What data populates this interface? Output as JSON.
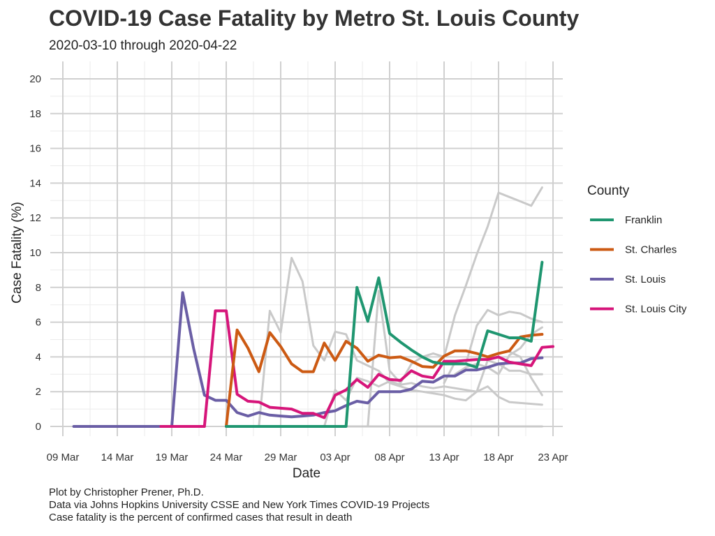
{
  "chart_data": {
    "type": "line",
    "title": "COVID-19 Case Fatality by Metro St. Louis County",
    "subtitle": "2020-03-10 through 2020-04-22",
    "xlabel": "Date",
    "ylabel": "Case Fatality (%)",
    "xlim": [
      "2020-03-09",
      "2020-04-23"
    ],
    "ylim": [
      0,
      20
    ],
    "x_ticks": [
      {
        "date": "2020-03-09",
        "label": "09 Mar"
      },
      {
        "date": "2020-03-14",
        "label": "14 Mar"
      },
      {
        "date": "2020-03-19",
        "label": "19 Mar"
      },
      {
        "date": "2020-03-24",
        "label": "24 Mar"
      },
      {
        "date": "2020-03-29",
        "label": "29 Mar"
      },
      {
        "date": "2020-04-03",
        "label": "03 Apr"
      },
      {
        "date": "2020-04-08",
        "label": "08 Apr"
      },
      {
        "date": "2020-04-13",
        "label": "13 Apr"
      },
      {
        "date": "2020-04-18",
        "label": "18 Apr"
      },
      {
        "date": "2020-04-23",
        "label": "23 Apr"
      }
    ],
    "y_ticks": [
      0,
      2,
      4,
      6,
      8,
      10,
      12,
      14,
      16,
      18,
      20
    ],
    "grid": true,
    "legend": {
      "title": "County",
      "position": "right"
    },
    "series": [
      {
        "name": "St. Louis",
        "color": "#6a5ea5",
        "start_date": "2020-03-10",
        "values": [
          0,
          0,
          0,
          0,
          0,
          0,
          0,
          0,
          0,
          0,
          7.7,
          4.5,
          1.8,
          1.5,
          1.5,
          0.8,
          0.6,
          0.8,
          0.65,
          0.6,
          0.55,
          0.6,
          0.65,
          0.8,
          0.9,
          1.2,
          1.45,
          1.35,
          2.0,
          2.0,
          2.0,
          2.15,
          2.6,
          2.55,
          2.9,
          2.9,
          3.25,
          3.25,
          3.4,
          3.6,
          3.65,
          3.65,
          3.9,
          3.95
        ]
      },
      {
        "name": "St. Louis City",
        "color": "#d6157a",
        "start_date": "2020-03-18",
        "values": [
          0,
          0,
          0,
          0,
          0,
          6.65,
          6.65,
          1.85,
          1.45,
          1.4,
          1.1,
          1.05,
          1.0,
          0.75,
          0.75,
          0.5,
          1.8,
          2.1,
          2.7,
          2.25,
          3.0,
          2.7,
          2.65,
          3.2,
          2.9,
          2.8,
          3.75,
          3.75,
          3.8,
          3.85,
          3.85,
          4.0,
          3.7,
          3.6,
          3.5,
          4.55,
          4.6
        ]
      },
      {
        "name": "St. Charles",
        "color": "#cc5a13",
        "start_date": "2020-03-24",
        "values": [
          0,
          5.55,
          4.5,
          3.15,
          5.4,
          4.6,
          3.6,
          3.15,
          3.15,
          4.8,
          3.8,
          4.9,
          4.5,
          3.75,
          4.1,
          3.95,
          4.0,
          3.75,
          3.45,
          3.4,
          4.05,
          4.35,
          4.35,
          4.2,
          4.0,
          4.2,
          4.35,
          5.15,
          5.25,
          5.3
        ]
      },
      {
        "name": "Franklin",
        "color": "#1f9670",
        "start_date": "2020-03-24",
        "values": [
          0,
          0,
          0,
          0,
          0,
          0,
          0,
          0,
          0,
          0,
          0,
          0,
          8.0,
          6.05,
          8.55,
          5.35,
          4.85,
          4.4,
          4.0,
          3.7,
          3.6,
          3.6,
          3.6,
          3.4,
          5.5,
          5.3,
          5.1,
          5.1,
          4.9,
          9.45
        ]
      }
    ],
    "background_series": [
      {
        "color": "#c9c9c9",
        "points": [
          [
            "2020-03-24",
            0
          ],
          [
            "2020-04-22",
            0
          ]
        ]
      },
      {
        "color": "#c9c9c9",
        "points": [
          [
            "2020-03-27",
            0
          ],
          [
            "2020-03-28",
            6.65
          ],
          [
            "2020-03-29",
            5.4
          ],
          [
            "2020-03-30",
            9.7
          ],
          [
            "2020-03-31",
            8.35
          ],
          [
            "2020-04-01",
            4.65
          ],
          [
            "2020-04-02",
            3.8
          ],
          [
            "2020-04-03",
            5.45
          ],
          [
            "2020-04-04",
            5.3
          ],
          [
            "2020-04-05",
            3.8
          ],
          [
            "2020-04-06",
            3.5
          ],
          [
            "2020-04-07",
            3.2
          ],
          [
            "2020-04-08",
            2.5
          ],
          [
            "2020-04-09",
            2.3
          ],
          [
            "2020-04-10",
            2.1
          ],
          [
            "2020-04-11",
            2.0
          ],
          [
            "2020-04-12",
            1.9
          ],
          [
            "2020-04-13",
            1.8
          ],
          [
            "2020-04-14",
            1.6
          ],
          [
            "2020-04-15",
            1.5
          ],
          [
            "2020-04-16",
            2.0
          ],
          [
            "2020-04-17",
            2.3
          ],
          [
            "2020-04-18",
            1.7
          ],
          [
            "2020-04-19",
            1.4
          ],
          [
            "2020-04-20",
            1.35
          ],
          [
            "2020-04-21",
            1.3
          ],
          [
            "2020-04-22",
            1.25
          ]
        ]
      },
      {
        "color": "#c9c9c9",
        "points": [
          [
            "2020-04-02",
            0
          ],
          [
            "2020-04-03",
            2.1
          ],
          [
            "2020-04-04",
            1.5
          ],
          [
            "2020-04-05",
            2.8
          ],
          [
            "2020-04-06",
            2.6
          ],
          [
            "2020-04-07",
            2.3
          ],
          [
            "2020-04-08",
            2.6
          ],
          [
            "2020-04-09",
            2.4
          ],
          [
            "2020-04-10",
            2.5
          ],
          [
            "2020-04-11",
            2.3
          ],
          [
            "2020-04-12",
            2.2
          ],
          [
            "2020-04-13",
            2.3
          ],
          [
            "2020-04-14",
            2.2
          ],
          [
            "2020-04-15",
            2.1
          ],
          [
            "2020-04-16",
            2.0
          ],
          [
            "2020-04-17",
            3.8
          ],
          [
            "2020-04-18",
            3.6
          ],
          [
            "2020-04-19",
            3.2
          ],
          [
            "2020-04-20",
            3.2
          ],
          [
            "2020-04-21",
            3.0
          ],
          [
            "2020-04-22",
            3.0
          ]
        ]
      },
      {
        "color": "#c9c9c9",
        "points": [
          [
            "2020-04-06",
            0
          ],
          [
            "2020-04-07",
            7.8
          ],
          [
            "2020-04-08",
            3.2
          ],
          [
            "2020-04-09",
            2.5
          ],
          [
            "2020-04-10",
            3.6
          ],
          [
            "2020-04-11",
            4.0
          ],
          [
            "2020-04-12",
            4.2
          ],
          [
            "2020-04-13",
            4.0
          ],
          [
            "2020-04-14",
            6.4
          ],
          [
            "2020-04-15",
            8.1
          ],
          [
            "2020-04-16",
            9.9
          ],
          [
            "2020-04-17",
            11.5
          ],
          [
            "2020-04-18",
            13.45
          ],
          [
            "2020-04-19",
            13.2
          ],
          [
            "2020-04-20",
            12.95
          ],
          [
            "2020-04-21",
            12.7
          ],
          [
            "2020-04-22",
            13.75
          ]
        ]
      },
      {
        "color": "#c9c9c9",
        "points": [
          [
            "2020-04-13",
            2.5
          ],
          [
            "2020-04-14",
            3.7
          ],
          [
            "2020-04-15",
            3.6
          ],
          [
            "2020-04-16",
            5.8
          ],
          [
            "2020-04-17",
            6.7
          ],
          [
            "2020-04-18",
            6.4
          ],
          [
            "2020-04-19",
            6.6
          ],
          [
            "2020-04-20",
            6.5
          ],
          [
            "2020-04-21",
            6.2
          ],
          [
            "2020-04-22",
            6.0
          ]
        ]
      },
      {
        "color": "#c9c9c9",
        "points": [
          [
            "2020-04-14",
            3.0
          ],
          [
            "2020-04-15",
            3.4
          ],
          [
            "2020-04-16",
            3.6
          ],
          [
            "2020-04-17",
            3.4
          ],
          [
            "2020-04-18",
            3.0
          ],
          [
            "2020-04-19",
            4.1
          ],
          [
            "2020-04-20",
            4.5
          ],
          [
            "2020-04-21",
            5.3
          ],
          [
            "2020-04-22",
            5.7
          ]
        ]
      },
      {
        "color": "#c9c9c9",
        "points": [
          [
            "2020-04-19",
            4.3
          ],
          [
            "2020-04-20",
            4.0
          ],
          [
            "2020-04-21",
            2.8
          ],
          [
            "2020-04-22",
            1.8
          ]
        ]
      }
    ]
  },
  "caption": [
    "Plot by Christopher Prener, Ph.D.",
    "Data via Johns Hopkins University CSSE and New York Times COVID-19 Projects",
    "Case fatality is the percent of confirmed cases that result in death"
  ]
}
